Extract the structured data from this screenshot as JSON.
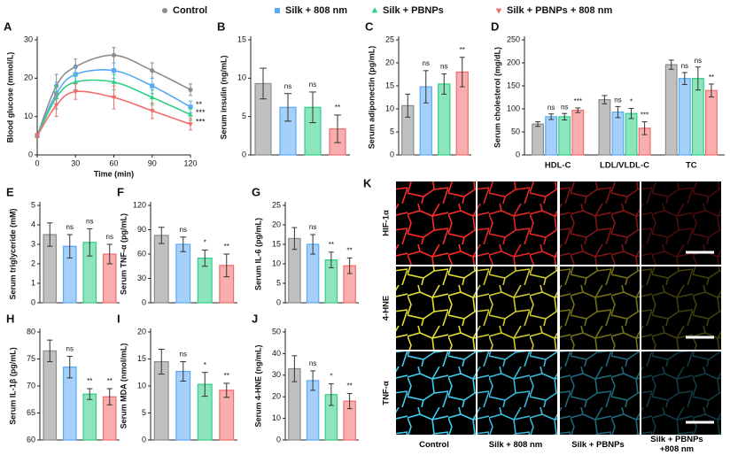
{
  "chart_data": [
    {
      "panel": "A",
      "type": "line",
      "ylabel": "Blood glucose (mmol/L)",
      "xlabel": "Time (min)",
      "x": [
        0,
        15,
        30,
        60,
        90,
        120
      ],
      "series": [
        {
          "name": "Control",
          "color": "#8c8c8c",
          "marker": "circle",
          "values": [
            5,
            18,
            23,
            26,
            22,
            17
          ],
          "errors": [
            0.5,
            3,
            2,
            2,
            2,
            1.5
          ],
          "annotation": null
        },
        {
          "name": "Silk + 808 nm",
          "color": "#5aa9f5",
          "marker": "square",
          "values": [
            5,
            16,
            21,
            22,
            18,
            12.5
          ],
          "errors": [
            0.5,
            3,
            2,
            2,
            2,
            1.5
          ],
          "annotation": "**"
        },
        {
          "name": "Silk + PBNPs",
          "color": "#2fcf86",
          "marker": "triangle",
          "values": [
            5,
            15,
            19,
            19,
            15,
            10.5
          ],
          "errors": [
            0.5,
            3,
            2,
            2,
            2,
            1.5
          ],
          "annotation": "***"
        },
        {
          "name": "Silk + PBNPs + 808 nm",
          "color": "#f26b6b",
          "marker": "triangle-down",
          "values": [
            5,
            13,
            16.5,
            15,
            11.5,
            8
          ],
          "errors": [
            0.5,
            3,
            2,
            3,
            2,
            1.5
          ],
          "annotation": "***"
        }
      ],
      "xlim": [
        0,
        120
      ],
      "xticks": [
        0,
        30,
        60,
        90,
        120
      ],
      "ylim": [
        0,
        30
      ],
      "yticks": [
        0,
        10,
        20,
        30
      ]
    },
    {
      "panel": "B",
      "type": "bar",
      "ylabel": "Serum insulin (ng/mL)",
      "colors": [
        "#8c8c8c",
        "#5aa9f5",
        "#2fcf86",
        "#f26b6b"
      ],
      "values": [
        9.3,
        6.2,
        6.2,
        3.4
      ],
      "errors": [
        2,
        1.8,
        2,
        1.8
      ],
      "annotations": [
        null,
        "ns",
        "ns",
        "**"
      ],
      "ylim": [
        0,
        15
      ],
      "yticks": [
        0,
        5,
        10,
        15
      ]
    },
    {
      "panel": "C",
      "type": "bar",
      "ylabel": "Serum adiponectin (pg/mL)",
      "colors": [
        "#8c8c8c",
        "#5aa9f5",
        "#2fcf86",
        "#f26b6b"
      ],
      "values": [
        10.7,
        14.8,
        15.4,
        18.0
      ],
      "errors": [
        2.5,
        3.5,
        2.2,
        3.2
      ],
      "annotations": [
        null,
        "ns",
        "ns",
        "**"
      ],
      "ylim": [
        0,
        25
      ],
      "yticks": [
        0,
        5,
        10,
        15,
        20,
        25
      ]
    },
    {
      "panel": "D",
      "type": "grouped-bar",
      "ylabel": "Serum cholesterol (mg/dL)",
      "categories": [
        "HDL-C",
        "LDL/VLDL-C",
        "TC"
      ],
      "series": [
        {
          "color": "#8c8c8c",
          "values": [
            67,
            120,
            196
          ],
          "errors": [
            5,
            9,
            10
          ],
          "annotations": [
            null,
            null,
            null
          ]
        },
        {
          "color": "#5aa9f5",
          "values": [
            83,
            93,
            166
          ],
          "errors": [
            6,
            12,
            13
          ],
          "annotations": [
            "ns",
            "ns",
            "ns"
          ]
        },
        {
          "color": "#2fcf86",
          "values": [
            83,
            90,
            166
          ],
          "errors": [
            7,
            11,
            25
          ],
          "annotations": [
            "ns",
            "*",
            "ns"
          ]
        },
        {
          "color": "#f26b6b",
          "values": [
            97,
            58,
            140
          ],
          "errors": [
            5,
            14,
            14
          ],
          "annotations": [
            "***",
            "***",
            "**"
          ]
        }
      ],
      "ylim": [
        0,
        250
      ],
      "yticks": [
        0,
        50,
        100,
        150,
        200,
        250
      ]
    },
    {
      "panel": "E",
      "type": "bar",
      "ylabel": "Serum triglyceride (mM)",
      "colors": [
        "#8c8c8c",
        "#5aa9f5",
        "#2fcf86",
        "#f26b6b"
      ],
      "values": [
        3.5,
        2.9,
        3.1,
        2.5
      ],
      "errors": [
        0.6,
        0.6,
        0.7,
        0.5
      ],
      "annotations": [
        null,
        "ns",
        "ns",
        "ns"
      ],
      "ylim": [
        0,
        5
      ],
      "yticks": [
        0,
        1,
        2,
        3,
        4,
        5
      ]
    },
    {
      "panel": "F",
      "type": "bar",
      "ylabel": "Serum TNF-α (pg/mL)",
      "colors": [
        "#8c8c8c",
        "#5aa9f5",
        "#2fcf86",
        "#f26b6b"
      ],
      "values": [
        83,
        72,
        55,
        46
      ],
      "errors": [
        10,
        9,
        10,
        14
      ],
      "annotations": [
        null,
        "ns",
        "*",
        "**"
      ],
      "ylim": [
        0,
        120
      ],
      "yticks": [
        0,
        30,
        60,
        90,
        120
      ]
    },
    {
      "panel": "G",
      "type": "bar",
      "ylabel": "Serum IL-6 (pg/mL)",
      "colors": [
        "#8c8c8c",
        "#5aa9f5",
        "#2fcf86",
        "#f26b6b"
      ],
      "values": [
        16.5,
        15,
        11,
        9.5
      ],
      "errors": [
        2.8,
        2.5,
        2,
        2
      ],
      "annotations": [
        null,
        "ns",
        "**",
        "**"
      ],
      "ylim": [
        0,
        25
      ],
      "yticks": [
        0,
        5,
        10,
        15,
        20,
        25
      ]
    },
    {
      "panel": "H",
      "type": "bar",
      "ylabel": "Serum IL-1β (pg/mL)",
      "colors": [
        "#8c8c8c",
        "#5aa9f5",
        "#2fcf86",
        "#f26b6b"
      ],
      "values": [
        76.5,
        73.5,
        68.5,
        68
      ],
      "errors": [
        2,
        2,
        1,
        1.5
      ],
      "annotations": [
        null,
        "ns",
        "**",
        "**"
      ],
      "ylim": [
        60,
        80
      ],
      "yticks": [
        60,
        65,
        70,
        75,
        80
      ]
    },
    {
      "panel": "I",
      "type": "bar",
      "ylabel": "Serum MDA (nmol/mL)",
      "colors": [
        "#8c8c8c",
        "#5aa9f5",
        "#2fcf86",
        "#f26b6b"
      ],
      "values": [
        14.5,
        12.7,
        10.3,
        9.2
      ],
      "errors": [
        2.3,
        1.8,
        2.2,
        1.3
      ],
      "annotations": [
        null,
        "ns",
        "*",
        "**"
      ],
      "ylim": [
        0,
        20
      ],
      "yticks": [
        0,
        5,
        10,
        15,
        20
      ]
    },
    {
      "panel": "J",
      "type": "bar",
      "ylabel": "Serum 4-HNE (ng/mL)",
      "colors": [
        "#8c8c8c",
        "#5aa9f5",
        "#2fcf86",
        "#f26b6b"
      ],
      "values": [
        33,
        27.5,
        21,
        18
      ],
      "errors": [
        6,
        4.5,
        5,
        3.5
      ],
      "annotations": [
        null,
        "ns",
        "*",
        "**"
      ],
      "ylim": [
        0,
        50
      ],
      "yticks": [
        0,
        10,
        20,
        30,
        40,
        50
      ]
    }
  ],
  "panel_k": {
    "panel": "K",
    "rows": [
      "HIF-1α",
      "4-HNE",
      "TNF-α"
    ],
    "columns": [
      "Control",
      "Silk + 808 nm",
      "Silk + PBNPs",
      "Silk + PBNPs +808 nm"
    ]
  }
}
